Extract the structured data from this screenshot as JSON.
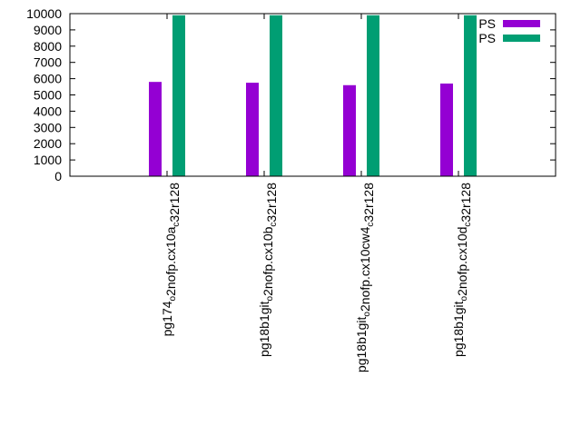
{
  "chart_data": {
    "type": "bar",
    "categories": [
      {
        "main": "pg174",
        "sub1": "o",
        "mid": "2nofp.cx10a",
        "sub2": "c",
        "tail": "32r128"
      },
      {
        "main": "pg18b1git",
        "sub1": "o",
        "mid": "2nofp.cx10b",
        "sub2": "c",
        "tail": "32r128"
      },
      {
        "main": "pg18b1git",
        "sub1": "o",
        "mid": "2nofp.cx10cw4",
        "sub2": "c",
        "tail": "32r128"
      },
      {
        "main": "pg18b1git",
        "sub1": "o",
        "mid": "2nofp.cx10d",
        "sub2": "c",
        "tail": "32r128"
      }
    ],
    "series": [
      {
        "name": "PS",
        "color": "#9400d3",
        "values": [
          5800,
          5750,
          5600,
          5700
        ]
      },
      {
        "name": "PS",
        "color": "#009e73",
        "values": [
          9900,
          9900,
          9900,
          9900
        ]
      }
    ],
    "yticks": [
      0,
      1000,
      2000,
      3000,
      4000,
      5000,
      6000,
      7000,
      8000,
      9000,
      10000
    ],
    "ylim": [
      0,
      10000
    ],
    "grid": false,
    "legend_position": "top-right"
  }
}
